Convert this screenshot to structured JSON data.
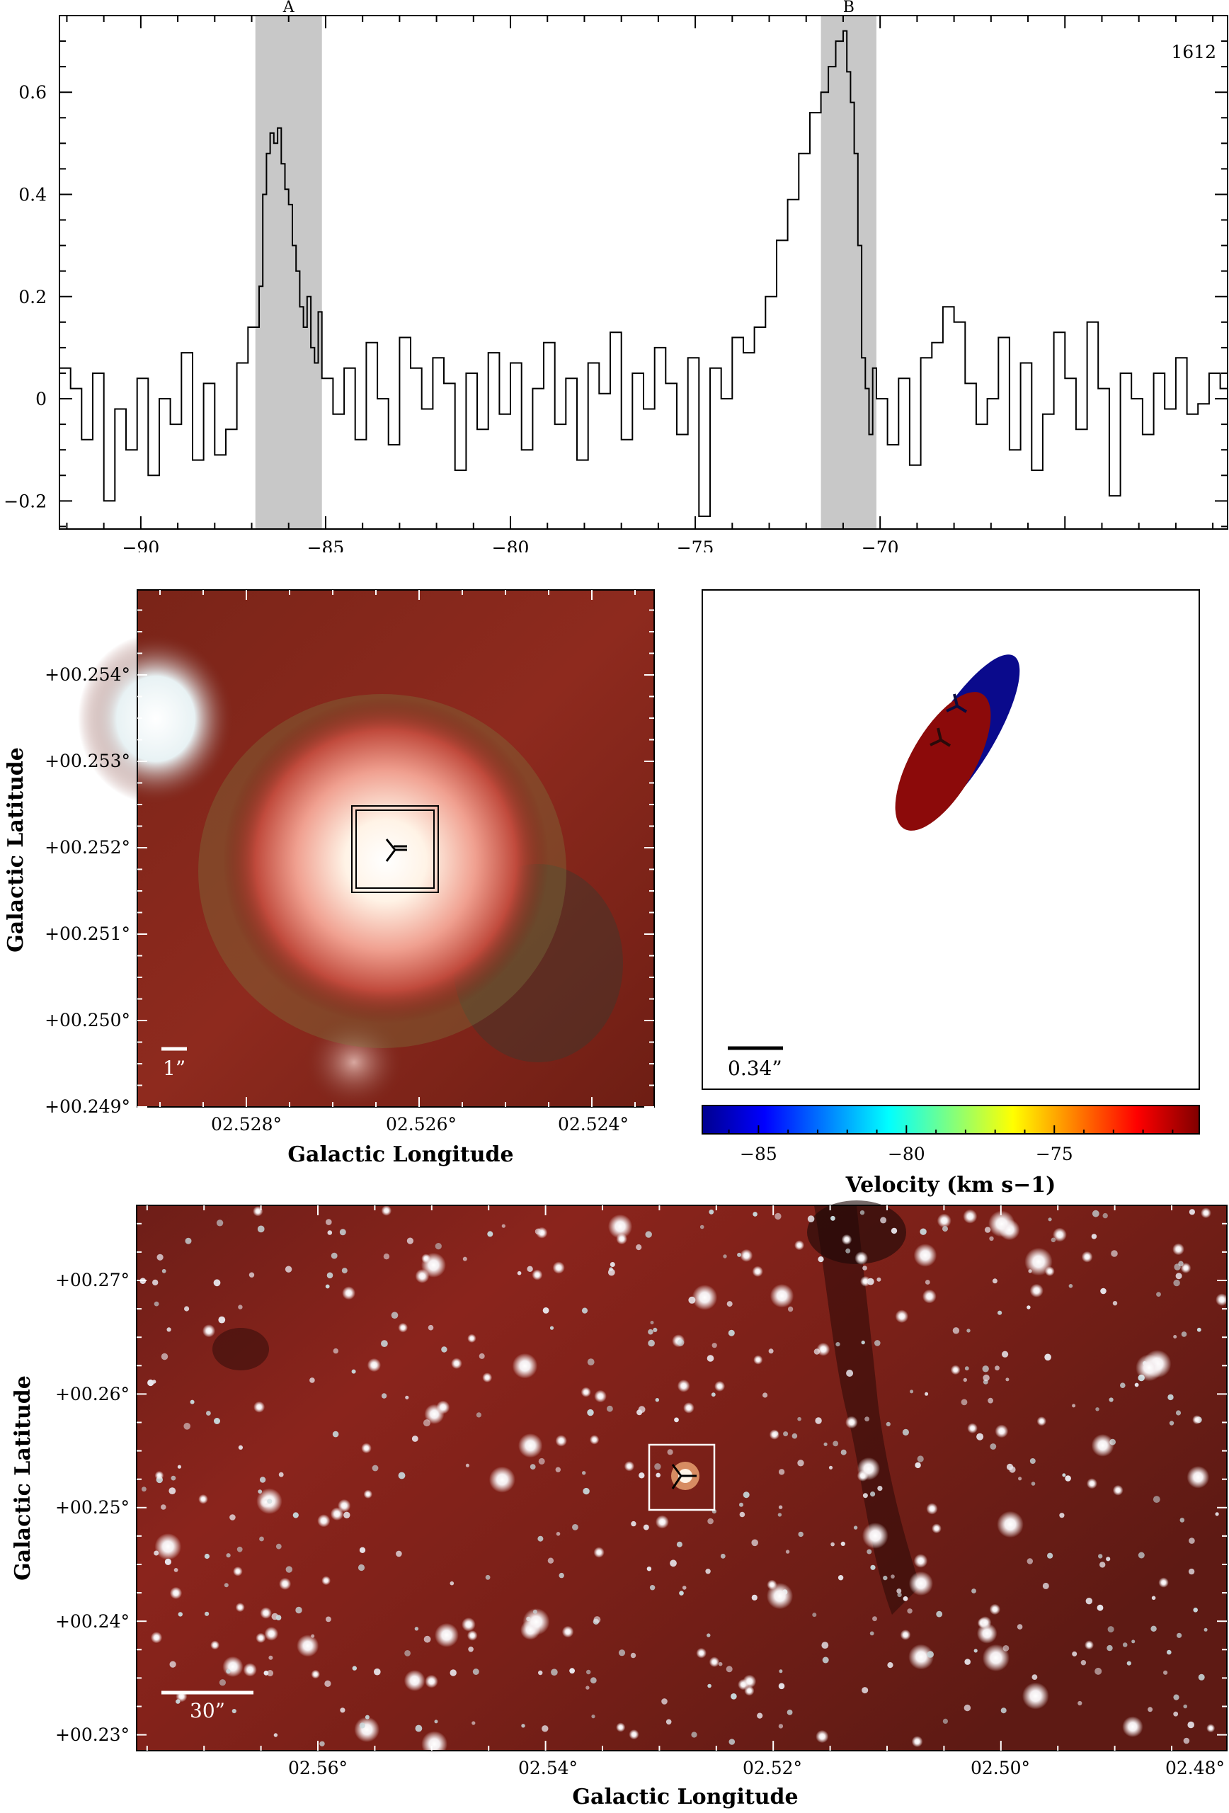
{
  "spectrum": {
    "corner_label": "1612",
    "chart_data": {
      "type": "line",
      "xlim": [
        -92.2,
        -60.6
      ],
      "ylim": [
        -0.255,
        0.75
      ],
      "x_ticks": [
        -90,
        -85,
        -80,
        -75,
        -70
      ],
      "y_ticks": [
        -0.2,
        0,
        0.2,
        0.4,
        0.6
      ],
      "x_tick_labels": [
        "−90",
        "−85",
        "−80",
        "−75",
        "−70"
      ],
      "y_tick_labels": [
        "−0.2",
        "0",
        "0.2",
        "0.4",
        "0.6"
      ],
      "regions": [
        {
          "label": "A",
          "x_range": [
            -86.9,
            -85.1
          ]
        },
        {
          "label": "B",
          "x_range": [
            -71.6,
            -70.1
          ]
        }
      ],
      "series": [
        {
          "x": [
            -92.2,
            -91.9,
            -91.6,
            -91.3,
            -91.0,
            -90.7,
            -90.4,
            -90.1,
            -89.8,
            -89.5,
            -89.2,
            -88.9,
            -88.6,
            -88.3,
            -88.0,
            -87.7,
            -87.4,
            -87.1,
            -86.8,
            -86.7,
            -86.6,
            -86.5,
            -86.4,
            -86.3,
            -86.2,
            -86.1,
            -86.0,
            -85.9,
            -85.8,
            -85.7,
            -85.6,
            -85.5,
            -85.4,
            -85.3,
            -85.2,
            -85.1,
            -84.8,
            -84.5,
            -84.2,
            -83.9,
            -83.6,
            -83.3,
            -83.0,
            -82.7,
            -82.4,
            -82.1,
            -81.8,
            -81.5,
            -81.2,
            -80.9,
            -80.6,
            -80.3,
            -80.0,
            -79.7,
            -79.4,
            -79.1,
            -78.8,
            -78.5,
            -78.2,
            -77.9,
            -77.6,
            -77.3,
            -77.0,
            -76.7,
            -76.4,
            -76.1,
            -75.8,
            -75.5,
            -75.2,
            -74.9,
            -74.6,
            -74.3,
            -74.0,
            -73.7,
            -73.4,
            -73.1,
            -72.8,
            -72.5,
            -72.2,
            -71.9,
            -71.6,
            -71.4,
            -71.2,
            -71.0,
            -70.9,
            -70.8,
            -70.7,
            -70.6,
            -70.5,
            -70.4,
            -70.3,
            -70.2,
            -70.1,
            -69.8,
            -69.5,
            -69.2,
            -68.9,
            -68.6,
            -68.3,
            -68.0,
            -67.7,
            -67.4,
            -67.1,
            -66.8,
            -66.5,
            -66.2,
            -65.9,
            -65.6,
            -65.3,
            -65.0,
            -64.7,
            -64.4,
            -64.1,
            -63.8,
            -63.5,
            -63.2,
            -62.9,
            -62.6,
            -62.3,
            -62.0,
            -61.7,
            -61.4,
            -61.1,
            -60.8
          ],
          "y": [
            0.06,
            0.02,
            -0.08,
            0.05,
            -0.2,
            -0.02,
            -0.1,
            0.04,
            -0.15,
            0.0,
            -0.05,
            0.09,
            -0.12,
            0.03,
            -0.11,
            -0.06,
            0.07,
            0.14,
            0.22,
            0.4,
            0.48,
            0.52,
            0.5,
            0.53,
            0.46,
            0.41,
            0.38,
            0.3,
            0.25,
            0.18,
            0.14,
            0.2,
            0.1,
            0.07,
            0.17,
            0.04,
            -0.03,
            0.06,
            -0.08,
            0.11,
            0.0,
            -0.09,
            0.12,
            0.06,
            -0.02,
            0.08,
            0.03,
            -0.14,
            0.05,
            -0.06,
            0.09,
            -0.03,
            0.07,
            -0.1,
            0.02,
            0.11,
            -0.05,
            0.04,
            -0.12,
            0.07,
            0.01,
            0.13,
            -0.08,
            0.05,
            -0.02,
            0.1,
            0.03,
            -0.07,
            0.08,
            -0.23,
            0.06,
            0.0,
            0.12,
            0.09,
            0.14,
            0.2,
            0.31,
            0.39,
            0.48,
            0.56,
            0.6,
            0.65,
            0.7,
            0.72,
            0.64,
            0.58,
            0.48,
            0.3,
            0.08,
            0.02,
            -0.07,
            0.06,
            0.0,
            -0.09,
            0.04,
            -0.13,
            0.08,
            0.11,
            0.18,
            0.15,
            0.03,
            -0.05,
            0.0,
            0.12,
            -0.1,
            0.07,
            -0.14,
            -0.03,
            0.13,
            0.04,
            -0.06,
            0.15,
            0.02,
            -0.19,
            0.05,
            0.0,
            -0.07,
            0.05,
            -0.02,
            0.08,
            -0.03,
            -0.01,
            0.05,
            0.02
          ]
        }
      ]
    }
  },
  "zoom_panel": {
    "y_tick_labels": [
      "+00.254°",
      "+00.253°",
      "+00.252°",
      "+00.251°",
      "+00.250°",
      "+00.249°"
    ],
    "x_tick_labels": [
      "02.528°",
      "02.526°",
      "02.524°"
    ],
    "xlabel": "Galactic Longitude",
    "ylabel": "Galactic Latitude",
    "scale_bar_label": "1”"
  },
  "velocity_panel": {
    "scale_bar_label": "0.34”",
    "colorbar_tick_labels": [
      "−85",
      "−80",
      "−75"
    ],
    "xlabel": "Velocity (km s−1)",
    "colorbar_range": [
      -86.9,
      -70.1
    ],
    "colorbar_ticks": [
      -85,
      -80,
      -75
    ],
    "colors": {
      "region_a": "#0a0a8c",
      "region_b": "#8c0a0a"
    }
  },
  "wide_panel": {
    "y_tick_labels": [
      "+00.27°",
      "+00.26°",
      "+00.25°",
      "+00.24°",
      "+00.23°"
    ],
    "x_tick_labels": [
      "02.56°",
      "02.54°",
      "02.52°",
      "02.50°",
      "02.48°"
    ],
    "xlabel": "Galactic Longitude",
    "ylabel": "Galactic Latitude",
    "scale_bar_label": "30”"
  }
}
